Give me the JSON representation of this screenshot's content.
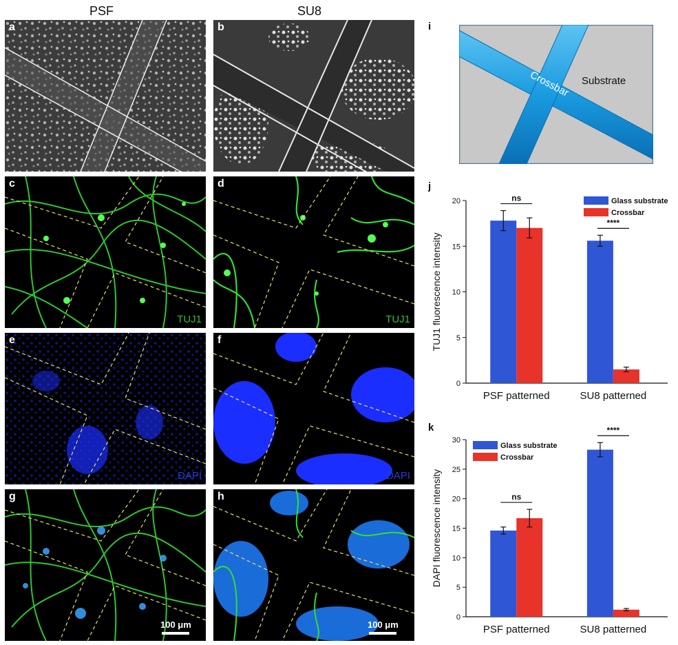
{
  "columns": {
    "left": "PSF",
    "right": "SU8"
  },
  "panels": {
    "a": "a",
    "b": "b",
    "c": "c",
    "d": "d",
    "e": "e",
    "f": "f",
    "g": "g",
    "h": "h",
    "i": "i",
    "j": "j",
    "k": "k"
  },
  "stains": {
    "c": "TUJ1",
    "d": "TUJ1",
    "e": "DAPI",
    "f": "DAPI"
  },
  "scale_bar": {
    "g": "100 μm",
    "h": "100 μm"
  },
  "schematic": {
    "crossbar_label": "Crossbar",
    "substrate_label": "Substrate"
  },
  "colors": {
    "glass_substrate": "#2f56d4",
    "crossbar": "#e8332a",
    "tuj1_green": "#33dd33",
    "dapi_blue": "#1a2eff",
    "schematic_bar": "#1a9be0",
    "schematic_bg": "#c8c8c8",
    "dashed_outline": "#e8e070"
  },
  "chart_data": [
    {
      "type": "bar",
      "panel": "j",
      "categories": [
        "PSF patterned",
        "SU8 patterned"
      ],
      "series": [
        {
          "name": "Glass substrate",
          "values": [
            17.8,
            15.6
          ],
          "errors": [
            1.1,
            0.6
          ]
        },
        {
          "name": "Crossbar",
          "values": [
            17.0,
            1.5
          ],
          "errors": [
            1.1,
            0.25
          ]
        }
      ],
      "ylabel": "TUJ1 fluorescence intensity",
      "xlabel": "",
      "ylim": [
        0,
        20
      ],
      "yticks": [
        "0",
        "5",
        "10",
        "15",
        "20"
      ],
      "significance": [
        "ns",
        "****"
      ],
      "legend": "top-right"
    },
    {
      "type": "bar",
      "panel": "k",
      "categories": [
        "PSF patterned",
        "SU8 patterned"
      ],
      "series": [
        {
          "name": "Glass substrate",
          "values": [
            14.6,
            28.3
          ],
          "errors": [
            0.6,
            1.2
          ]
        },
        {
          "name": "Crossbar",
          "values": [
            16.7,
            1.2
          ],
          "errors": [
            1.5,
            0.2
          ]
        }
      ],
      "ylabel": "DAPI fluorescence  intensity",
      "xlabel": "",
      "ylim": [
        0,
        30
      ],
      "yticks": [
        "0",
        "5",
        "10",
        "15",
        "20",
        "25",
        "30"
      ],
      "significance": [
        "ns",
        "****"
      ],
      "legend": "top-left"
    }
  ]
}
